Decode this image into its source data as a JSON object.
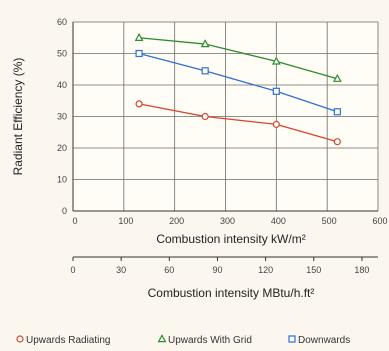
{
  "chart_data": {
    "type": "line",
    "ylabel": "Radiant Efficiency (%)",
    "xlabel": "Combustion intensity kW/m²",
    "xlabel2": "Combustion intensity MBtu/h.ft²",
    "xlim": [
      0,
      600
    ],
    "ylim": [
      0,
      60
    ],
    "xticks": [
      0,
      100,
      200,
      300,
      400,
      500,
      600
    ],
    "yticks": [
      0,
      10,
      20,
      30,
      40,
      50,
      60
    ],
    "x2lim": [
      0,
      190
    ],
    "x2ticks": [
      0,
      30,
      60,
      90,
      120,
      150,
      180
    ],
    "x2_tick_labels": [
      "0",
      "30",
      "60",
      "90",
      "120",
      "150",
      "180"
    ],
    "x_tick_labels": [
      "0",
      "100",
      "200",
      "300",
      "400",
      "500",
      "600"
    ],
    "y_tick_labels": [
      "0",
      "10",
      "20",
      "30",
      "40",
      "50",
      "60"
    ],
    "grid": true,
    "legend_position": "bottom",
    "series": [
      {
        "name": "Upwards Radiating",
        "marker": "circle",
        "color": "#d9432b",
        "x": [
          130,
          260,
          400,
          520
        ],
        "y": [
          34,
          30,
          27.5,
          22
        ]
      },
      {
        "name": "Upwards With Grid",
        "marker": "triangle",
        "color": "#2e8b2e",
        "x": [
          130,
          260,
          400,
          520
        ],
        "y": [
          55,
          53,
          47.5,
          42
        ]
      },
      {
        "name": "Downwards",
        "marker": "square",
        "color": "#2f6fd6",
        "x": [
          130,
          260,
          400,
          520
        ],
        "y": [
          50,
          44.5,
          38,
          31.5
        ]
      }
    ]
  }
}
